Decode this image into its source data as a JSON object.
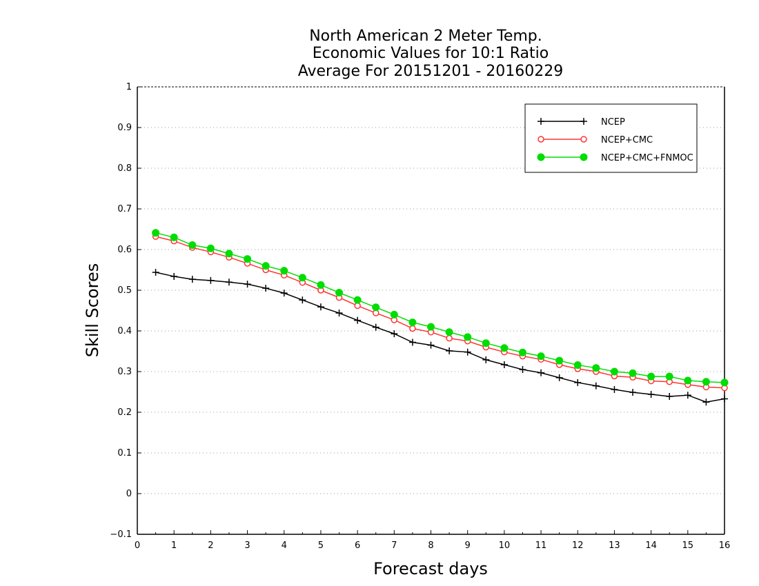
{
  "chart_data": {
    "type": "line",
    "title": [
      "North American 2 Meter Temp.",
      "Economic Values for 10:1 Ratio",
      "Average For 20151201 - 20160229"
    ],
    "xlabel": "Forecast days",
    "ylabel": "Skill Scores",
    "xlim": [
      0,
      16
    ],
    "ylim": [
      -0.1,
      1
    ],
    "xticks": [
      0,
      1,
      2,
      3,
      4,
      5,
      6,
      7,
      8,
      9,
      10,
      11,
      12,
      13,
      14,
      15,
      16
    ],
    "yticks": [
      -0.1,
      0,
      0.1,
      0.2,
      0.3,
      0.4,
      0.5,
      0.6,
      0.7,
      0.8,
      0.9,
      1
    ],
    "ytick_labels": [
      "−0.1",
      "0",
      "0.1",
      "0.2",
      "0.3",
      "0.4",
      "0.5",
      "0.6",
      "0.7",
      "0.8",
      "0.9",
      "1"
    ],
    "grid": "horizontal dotted",
    "legend_position": "top-right",
    "x": [
      0.5,
      1,
      1.5,
      2,
      2.5,
      3,
      3.5,
      4,
      4.5,
      5,
      5.5,
      6,
      6.5,
      7,
      7.5,
      8,
      8.5,
      9,
      9.5,
      10,
      10.5,
      11,
      11.5,
      12,
      12.5,
      13,
      13.5,
      14,
      14.5,
      15,
      15.5,
      16
    ],
    "series": [
      {
        "name": "NCEP",
        "color": "#000000",
        "marker": "plus",
        "values": [
          0.544,
          0.534,
          0.527,
          0.524,
          0.52,
          0.515,
          0.505,
          0.493,
          0.476,
          0.459,
          0.444,
          0.426,
          0.409,
          0.393,
          0.372,
          0.365,
          0.351,
          0.348,
          0.329,
          0.317,
          0.305,
          0.297,
          0.285,
          0.273,
          0.265,
          0.256,
          0.249,
          0.244,
          0.239,
          0.242,
          0.225,
          0.233
        ]
      },
      {
        "name": "NCEP+CMC",
        "color": "#ff3333",
        "marker": "open-circle",
        "values": [
          0.632,
          0.621,
          0.605,
          0.594,
          0.581,
          0.566,
          0.55,
          0.537,
          0.519,
          0.5,
          0.482,
          0.462,
          0.444,
          0.427,
          0.406,
          0.397,
          0.382,
          0.375,
          0.36,
          0.348,
          0.338,
          0.33,
          0.317,
          0.307,
          0.3,
          0.289,
          0.286,
          0.277,
          0.275,
          0.268,
          0.262,
          0.26
        ]
      },
      {
        "name": "NCEP+CMC+FNMOC",
        "color": "#00dd00",
        "marker": "filled-circle",
        "values": [
          0.641,
          0.63,
          0.611,
          0.603,
          0.59,
          0.577,
          0.56,
          0.548,
          0.531,
          0.513,
          0.494,
          0.476,
          0.458,
          0.44,
          0.421,
          0.41,
          0.397,
          0.385,
          0.37,
          0.358,
          0.347,
          0.338,
          0.327,
          0.316,
          0.309,
          0.3,
          0.296,
          0.288,
          0.288,
          0.278,
          0.275,
          0.273
        ]
      }
    ]
  }
}
